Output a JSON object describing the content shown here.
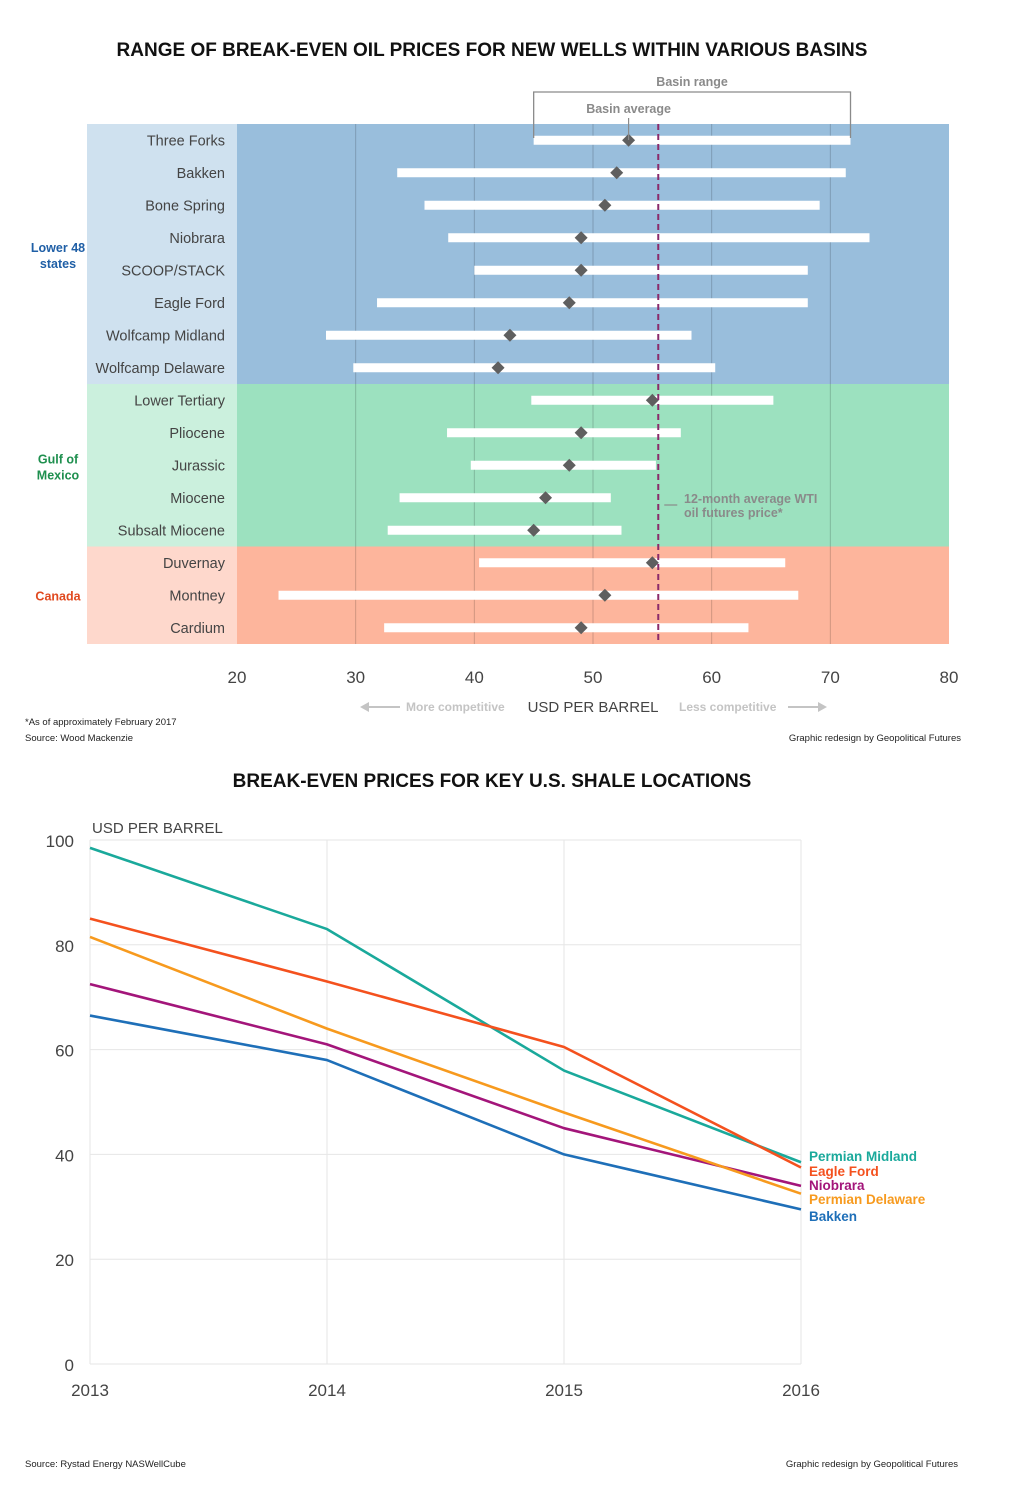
{
  "chart_data": [
    {
      "type": "range",
      "title": "RANGE OF BREAK-EVEN OIL PRICES FOR NEW WELLS WITHIN VARIOUS BASINS",
      "xlabel": "USD PER BARREL",
      "xlim": [
        20,
        80
      ],
      "xticks": [
        20,
        30,
        40,
        50,
        60,
        70,
        80
      ],
      "reference_line": {
        "value": 55.5,
        "label_line1": "12-month average WTI",
        "label_line2": "oil futures price*",
        "color": "#8b2a6b"
      },
      "legend": {
        "range_label": "Basin range",
        "average_label": "Basin average"
      },
      "direction_left": "More competitive",
      "direction_right": "Less competitive",
      "groups": [
        {
          "name": "Lower 48 states",
          "label_line1": "Lower 48",
          "label_line2": "states",
          "label_color": "#1f5fa6",
          "bg_color": "#99bedc",
          "label_bg": "#cfe1ef",
          "rows": [
            {
              "name": "Three Forks",
              "min": 45.0,
              "max": 71.7,
              "avg": 53.0
            },
            {
              "name": "Bakken",
              "min": 33.5,
              "max": 71.3,
              "avg": 52.0
            },
            {
              "name": "Bone Spring",
              "min": 35.8,
              "max": 69.1,
              "avg": 51.0
            },
            {
              "name": "Niobrara",
              "min": 37.8,
              "max": 73.3,
              "avg": 49.0
            },
            {
              "name": "SCOOP/STACK",
              "min": 40.0,
              "max": 68.1,
              "avg": 49.0
            },
            {
              "name": "Eagle Ford",
              "min": 31.8,
              "max": 68.1,
              "avg": 48.0
            },
            {
              "name": "Wolfcamp Midland",
              "min": 27.5,
              "max": 58.3,
              "avg": 43.0
            },
            {
              "name": "Wolfcamp Delaware",
              "min": 29.8,
              "max": 60.3,
              "avg": 42.0
            }
          ]
        },
        {
          "name": "Gulf of Mexico",
          "label_line1": "Gulf of",
          "label_line2": "Mexico",
          "label_color": "#1e8f4e",
          "bg_color": "#9ce1bf",
          "label_bg": "#cbf0dd",
          "rows": [
            {
              "name": "Lower Tertiary",
              "min": 44.8,
              "max": 65.2,
              "avg": 55.0
            },
            {
              "name": "Pliocene",
              "min": 37.7,
              "max": 57.4,
              "avg": 49.0
            },
            {
              "name": "Jurassic",
              "min": 39.7,
              "max": 55.3,
              "avg": 48.0
            },
            {
              "name": "Miocene",
              "min": 33.7,
              "max": 51.5,
              "avg": 46.0
            },
            {
              "name": "Subsalt Miocene",
              "min": 32.7,
              "max": 52.4,
              "avg": 45.0
            }
          ]
        },
        {
          "name": "Canada",
          "label_line1": "Canada",
          "label_line2": "",
          "label_color": "#e0491f",
          "bg_color": "#fdb59c",
          "label_bg": "#fed8cc",
          "rows": [
            {
              "name": "Duvernay",
              "min": 40.4,
              "max": 66.2,
              "avg": 55.0
            },
            {
              "name": "Montney",
              "min": 23.5,
              "max": 67.3,
              "avg": 51.0
            },
            {
              "name": "Cardium",
              "min": 32.4,
              "max": 63.1,
              "avg": 49.0
            }
          ]
        }
      ]
    },
    {
      "type": "line",
      "title": "BREAK-EVEN PRICES FOR KEY U.S. SHALE LOCATIONS",
      "ylabel": "USD PER BARREL",
      "x": [
        "2013",
        "2014",
        "2015",
        "2016"
      ],
      "ylim": [
        0,
        100
      ],
      "yticks": [
        0,
        20,
        40,
        60,
        80,
        100
      ],
      "grid": true,
      "series": [
        {
          "name": "Permian Midland",
          "color": "#1aa99b",
          "values": [
            98.5,
            83.0,
            56.0,
            38.5
          ]
        },
        {
          "name": "Eagle Ford",
          "color": "#f4511e",
          "values": [
            85.0,
            73.0,
            60.5,
            37.5
          ]
        },
        {
          "name": "Niobrara",
          "color": "#a3157a",
          "values": [
            72.5,
            61.0,
            45.0,
            34.0
          ]
        },
        {
          "name": "Permian Delaware",
          "color": "#f79a1e",
          "values": [
            81.5,
            64.0,
            48.0,
            32.5
          ]
        },
        {
          "name": "Bakken",
          "color": "#1e6fb8",
          "values": [
            66.5,
            58.0,
            40.0,
            29.5
          ]
        }
      ]
    }
  ],
  "notes": {
    "footnote": "*As of approximately February 2017",
    "source1": "Source: Wood Mackenzie",
    "credit1": "Graphic redesign by Geopolitical Futures",
    "source2": "Source: Rystad Energy NASWellCube",
    "credit2": "Graphic redesign by Geopolitical Futures"
  }
}
